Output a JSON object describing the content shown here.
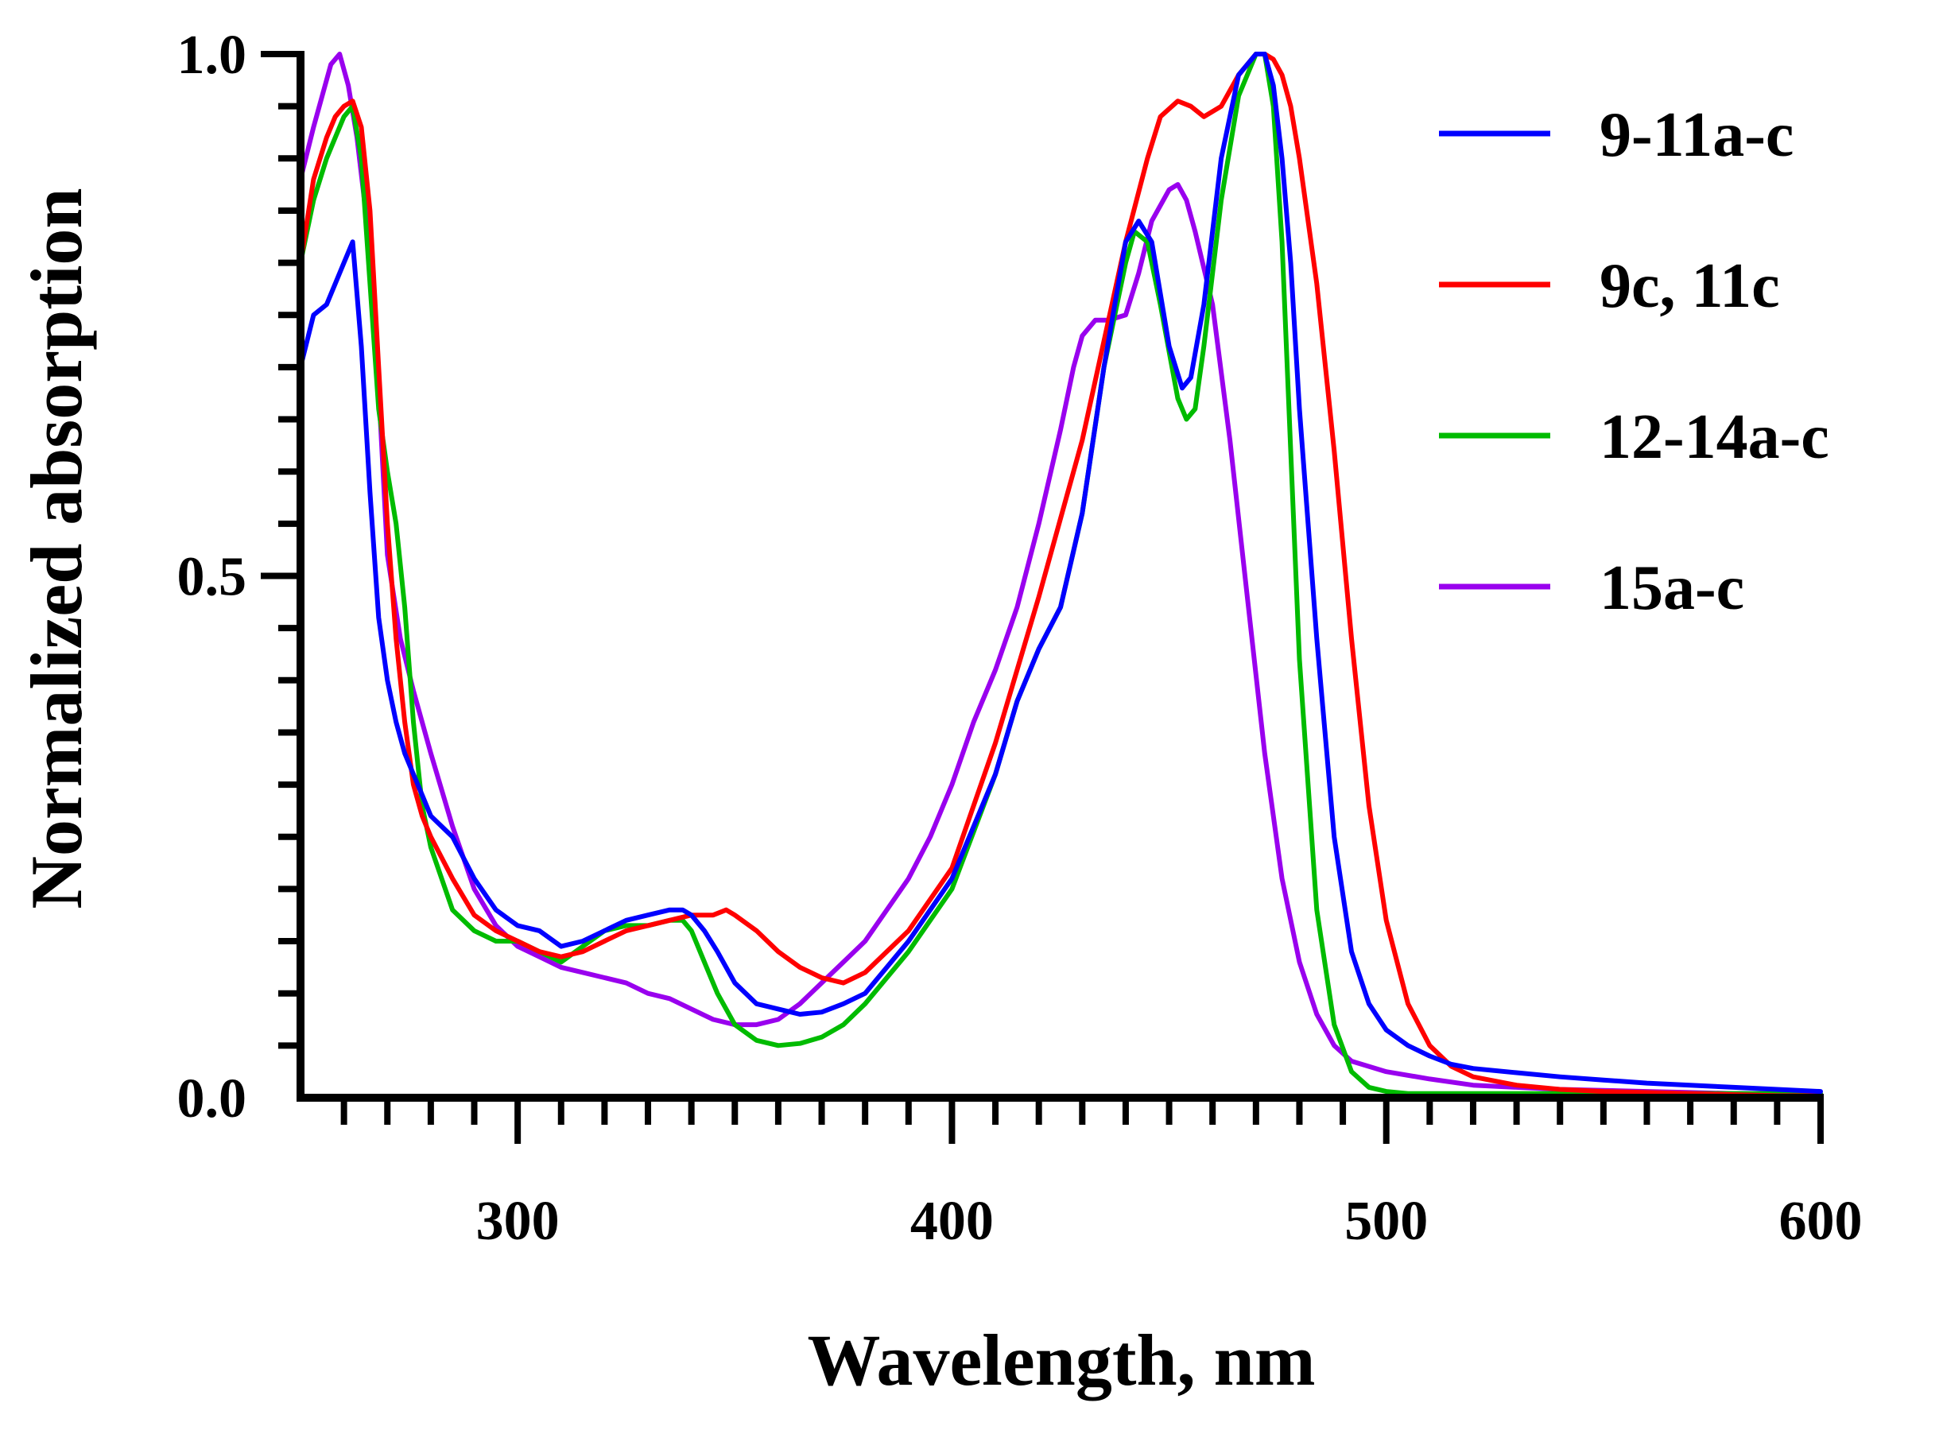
{
  "chart_data": {
    "type": "line",
    "title": "",
    "xlabel": "Wavelength, nm",
    "ylabel": "Normalized absorption",
    "xlim": [
      250,
      600
    ],
    "ylim": [
      0,
      1.0
    ],
    "x_ticks": [
      300,
      400,
      500,
      600
    ],
    "x_tick_labels": [
      "300",
      "400",
      "500",
      "600"
    ],
    "x_minor_step": 10,
    "y_ticks": [
      0,
      0.5,
      1.0
    ],
    "y_tick_labels": [
      "0.0",
      "0.5",
      "1.0"
    ],
    "y_minor_step": 0.05,
    "grid": false,
    "legend_position": "top-right",
    "series": [
      {
        "name": "9-11a-c",
        "color": "#0000ff",
        "x": [
          250,
          253,
          256,
          258,
          260,
          262,
          264,
          266,
          268,
          270,
          272,
          274,
          276,
          278,
          280,
          285,
          290,
          295,
          300,
          305,
          310,
          315,
          320,
          325,
          330,
          335,
          338,
          340,
          343,
          346,
          350,
          355,
          360,
          365,
          370,
          375,
          380,
          390,
          400,
          410,
          415,
          420,
          425,
          430,
          435,
          440,
          443,
          446,
          450,
          453,
          455,
          458,
          462,
          466,
          470,
          472,
          474,
          476,
          478,
          480,
          484,
          488,
          492,
          496,
          500,
          505,
          510,
          515,
          520,
          530,
          540,
          550,
          560,
          570,
          580,
          590,
          600
        ],
        "y": [
          0.7,
          0.75,
          0.76,
          0.78,
          0.8,
          0.82,
          0.72,
          0.58,
          0.46,
          0.4,
          0.36,
          0.33,
          0.31,
          0.29,
          0.27,
          0.25,
          0.21,
          0.18,
          0.165,
          0.16,
          0.145,
          0.15,
          0.16,
          0.17,
          0.175,
          0.18,
          0.18,
          0.175,
          0.16,
          0.14,
          0.11,
          0.09,
          0.085,
          0.08,
          0.082,
          0.09,
          0.1,
          0.15,
          0.21,
          0.31,
          0.38,
          0.43,
          0.47,
          0.56,
          0.7,
          0.82,
          0.84,
          0.82,
          0.72,
          0.68,
          0.69,
          0.76,
          0.9,
          0.98,
          1.0,
          1.0,
          0.97,
          0.9,
          0.8,
          0.66,
          0.44,
          0.25,
          0.14,
          0.09,
          0.065,
          0.05,
          0.04,
          0.032,
          0.028,
          0.024,
          0.02,
          0.017,
          0.014,
          0.012,
          0.01,
          0.008,
          0.006
        ]
      },
      {
        "name": "9c, 11c",
        "color": "#ff0000",
        "x": [
          250,
          253,
          256,
          258,
          260,
          262,
          264,
          266,
          268,
          270,
          272,
          274,
          276,
          278,
          280,
          285,
          290,
          295,
          300,
          305,
          310,
          315,
          320,
          325,
          330,
          335,
          340,
          345,
          348,
          350,
          355,
          360,
          365,
          370,
          375,
          380,
          390,
          400,
          410,
          420,
          430,
          440,
          445,
          448,
          452,
          455,
          458,
          462,
          466,
          470,
          472,
          474,
          476,
          478,
          480,
          484,
          488,
          492,
          496,
          500,
          505,
          510,
          515,
          520,
          530,
          540,
          550,
          560,
          570,
          580,
          590,
          600
        ],
        "y": [
          0.8,
          0.88,
          0.92,
          0.94,
          0.95,
          0.955,
          0.93,
          0.85,
          0.7,
          0.55,
          0.44,
          0.36,
          0.3,
          0.27,
          0.25,
          0.21,
          0.175,
          0.16,
          0.15,
          0.14,
          0.135,
          0.14,
          0.15,
          0.16,
          0.165,
          0.17,
          0.175,
          0.175,
          0.18,
          0.175,
          0.16,
          0.14,
          0.125,
          0.115,
          0.11,
          0.12,
          0.16,
          0.22,
          0.34,
          0.48,
          0.63,
          0.82,
          0.9,
          0.94,
          0.955,
          0.95,
          0.94,
          0.95,
          0.98,
          1.0,
          1.0,
          0.995,
          0.98,
          0.95,
          0.9,
          0.78,
          0.62,
          0.44,
          0.28,
          0.17,
          0.09,
          0.05,
          0.03,
          0.02,
          0.012,
          0.008,
          0.006,
          0.005,
          0.004,
          0.003,
          0.002,
          0.002
        ]
      },
      {
        "name": "12-14a-c",
        "color": "#00bb00",
        "x": [
          250,
          253,
          256,
          258,
          260,
          262,
          264,
          266,
          268,
          270,
          272,
          274,
          276,
          278,
          280,
          285,
          290,
          295,
          300,
          305,
          310,
          315,
          320,
          325,
          330,
          335,
          338,
          340,
          343,
          346,
          350,
          355,
          360,
          365,
          370,
          375,
          380,
          390,
          400,
          410,
          415,
          420,
          425,
          430,
          435,
          440,
          442,
          445,
          448,
          452,
          454,
          456,
          458,
          462,
          466,
          470,
          472,
          474,
          476,
          478,
          480,
          484,
          488,
          492,
          496,
          500,
          505,
          510,
          520,
          530,
          540,
          550,
          560,
          570,
          580,
          590,
          600
        ],
        "y": [
          0.8,
          0.86,
          0.9,
          0.92,
          0.94,
          0.95,
          0.9,
          0.78,
          0.66,
          0.6,
          0.55,
          0.47,
          0.36,
          0.28,
          0.24,
          0.18,
          0.16,
          0.15,
          0.15,
          0.14,
          0.13,
          0.145,
          0.16,
          0.165,
          0.165,
          0.17,
          0.17,
          0.16,
          0.13,
          0.1,
          0.07,
          0.055,
          0.05,
          0.052,
          0.058,
          0.07,
          0.09,
          0.14,
          0.2,
          0.31,
          0.38,
          0.43,
          0.47,
          0.56,
          0.7,
          0.8,
          0.83,
          0.82,
          0.76,
          0.67,
          0.65,
          0.66,
          0.72,
          0.86,
          0.96,
          1.0,
          1.0,
          0.95,
          0.82,
          0.62,
          0.42,
          0.18,
          0.07,
          0.025,
          0.01,
          0.006,
          0.004,
          0.004,
          0.004,
          0.004,
          0.004,
          0.004,
          0.004,
          0.004,
          0.004,
          0.004,
          0.004
        ]
      },
      {
        "name": "15a-c",
        "color": "#9900ee",
        "x": [
          250,
          253,
          255,
          257,
          259,
          261,
          263,
          265,
          268,
          270,
          273,
          276,
          280,
          285,
          290,
          295,
          300,
          305,
          310,
          315,
          320,
          325,
          330,
          335,
          340,
          345,
          350,
          355,
          360,
          365,
          370,
          375,
          380,
          385,
          390,
          395,
          400,
          405,
          410,
          415,
          420,
          425,
          428,
          430,
          433,
          436,
          440,
          443,
          446,
          450,
          452,
          454,
          456,
          460,
          464,
          468,
          472,
          476,
          480,
          484,
          488,
          492,
          496,
          500,
          510,
          520,
          530,
          540,
          550,
          560,
          570,
          580,
          590,
          600
        ],
        "y": [
          0.88,
          0.93,
          0.96,
          0.99,
          1.0,
          0.97,
          0.92,
          0.85,
          0.68,
          0.52,
          0.44,
          0.39,
          0.33,
          0.26,
          0.2,
          0.165,
          0.145,
          0.135,
          0.125,
          0.12,
          0.115,
          0.11,
          0.1,
          0.095,
          0.085,
          0.075,
          0.07,
          0.07,
          0.075,
          0.09,
          0.11,
          0.13,
          0.15,
          0.18,
          0.21,
          0.25,
          0.3,
          0.36,
          0.41,
          0.47,
          0.55,
          0.64,
          0.7,
          0.73,
          0.745,
          0.745,
          0.75,
          0.79,
          0.84,
          0.87,
          0.875,
          0.86,
          0.83,
          0.76,
          0.63,
          0.48,
          0.33,
          0.21,
          0.13,
          0.08,
          0.05,
          0.035,
          0.03,
          0.025,
          0.018,
          0.012,
          0.01,
          0.008,
          0.007,
          0.006,
          0.005,
          0.004,
          0.004,
          0.004
        ]
      }
    ]
  }
}
